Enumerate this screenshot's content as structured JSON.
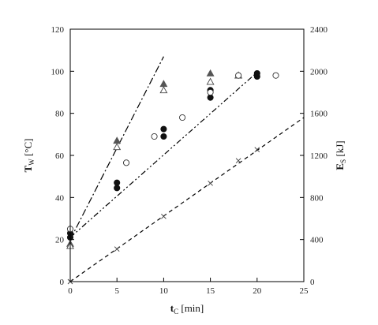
{
  "chart_data": {
    "type": "scatter",
    "xlabel": {
      "main": "t",
      "sub": "C",
      "unit": " [min]"
    },
    "ylabel_left": {
      "main": "T",
      "sub": "W",
      "unit": " [°C]"
    },
    "ylabel_right": {
      "main": "E",
      "sub": "S",
      "unit": " [kJ]"
    },
    "xlim": [
      0,
      25
    ],
    "ylim_left": [
      0,
      120
    ],
    "ylim_right": [
      0,
      2400
    ],
    "xticks": [
      0,
      5,
      10,
      15,
      20,
      25
    ],
    "yticks_left": [
      0,
      20,
      40,
      60,
      80,
      100,
      120
    ],
    "yticks_right": [
      0,
      400,
      800,
      1200,
      1600,
      2000,
      2400
    ],
    "grid": false,
    "legend": "none",
    "series": [
      {
        "marker": "filled-triangle",
        "axis": "left",
        "points": [
          [
            0,
            18
          ],
          [
            5,
            67
          ],
          [
            10,
            94
          ],
          [
            15,
            99
          ],
          [
            18,
            98
          ]
        ]
      },
      {
        "marker": "open-triangle",
        "axis": "left",
        "points": [
          [
            0,
            17
          ],
          [
            5,
            64
          ],
          [
            10,
            91
          ],
          [
            15,
            95
          ],
          [
            18,
            98
          ]
        ]
      },
      {
        "marker": "filled-circle",
        "axis": "left",
        "points": [
          [
            0,
            21
          ],
          [
            0,
            23
          ],
          [
            5,
            44.5
          ],
          [
            5,
            47
          ],
          [
            10,
            69
          ],
          [
            10,
            72.5
          ],
          [
            15,
            87.5
          ],
          [
            15,
            91
          ],
          [
            20,
            97.5
          ],
          [
            20,
            99
          ]
        ]
      },
      {
        "marker": "open-circle",
        "axis": "left",
        "points": [
          [
            0,
            25
          ],
          [
            6,
            56.5
          ],
          [
            9,
            69
          ],
          [
            12,
            78
          ],
          [
            15,
            90
          ],
          [
            18,
            98
          ],
          [
            22,
            98
          ]
        ]
      },
      {
        "marker": "cross",
        "axis": "right",
        "points": [
          [
            0,
            0
          ],
          [
            5,
            310
          ],
          [
            10,
            620
          ],
          [
            15,
            935
          ],
          [
            18,
            1150
          ],
          [
            20,
            1255
          ]
        ]
      }
    ],
    "fit_lines": [
      {
        "style": "dash-dot",
        "axis": "left",
        "from": [
          0,
          20
        ],
        "to": [
          10,
          107
        ]
      },
      {
        "style": "dash-dot-dot",
        "axis": "left",
        "from": [
          0,
          21
        ],
        "to": [
          20,
          99.5
        ]
      },
      {
        "style": "dashed",
        "axis": "right",
        "from": [
          0,
          0
        ],
        "to": [
          25,
          1560
        ]
      }
    ]
  }
}
